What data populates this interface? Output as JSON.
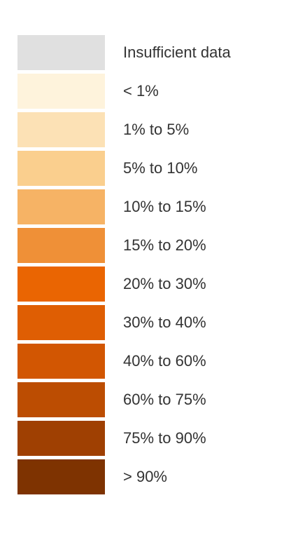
{
  "legend": {
    "items": [
      {
        "label": "Insufficient data",
        "color": "#e0e0e0"
      },
      {
        "label": "< 1%",
        "color": "#fef3dc"
      },
      {
        "label": "1% to 5%",
        "color": "#fce1b5"
      },
      {
        "label": "5% to 10%",
        "color": "#facf8e"
      },
      {
        "label": "10% to 15%",
        "color": "#f6b365"
      },
      {
        "label": "15% to 20%",
        "color": "#ef9037"
      },
      {
        "label": "20% to 30%",
        "color": "#ea6502"
      },
      {
        "label": "30% to 40%",
        "color": "#df5e03"
      },
      {
        "label": "40% to 60%",
        "color": "#d25602"
      },
      {
        "label": "60% to 75%",
        "color": "#bc4d02"
      },
      {
        "label": "75% to 90%",
        "color": "#9f4002"
      },
      {
        "label": "> 90%",
        "color": "#7e3301"
      }
    ]
  }
}
